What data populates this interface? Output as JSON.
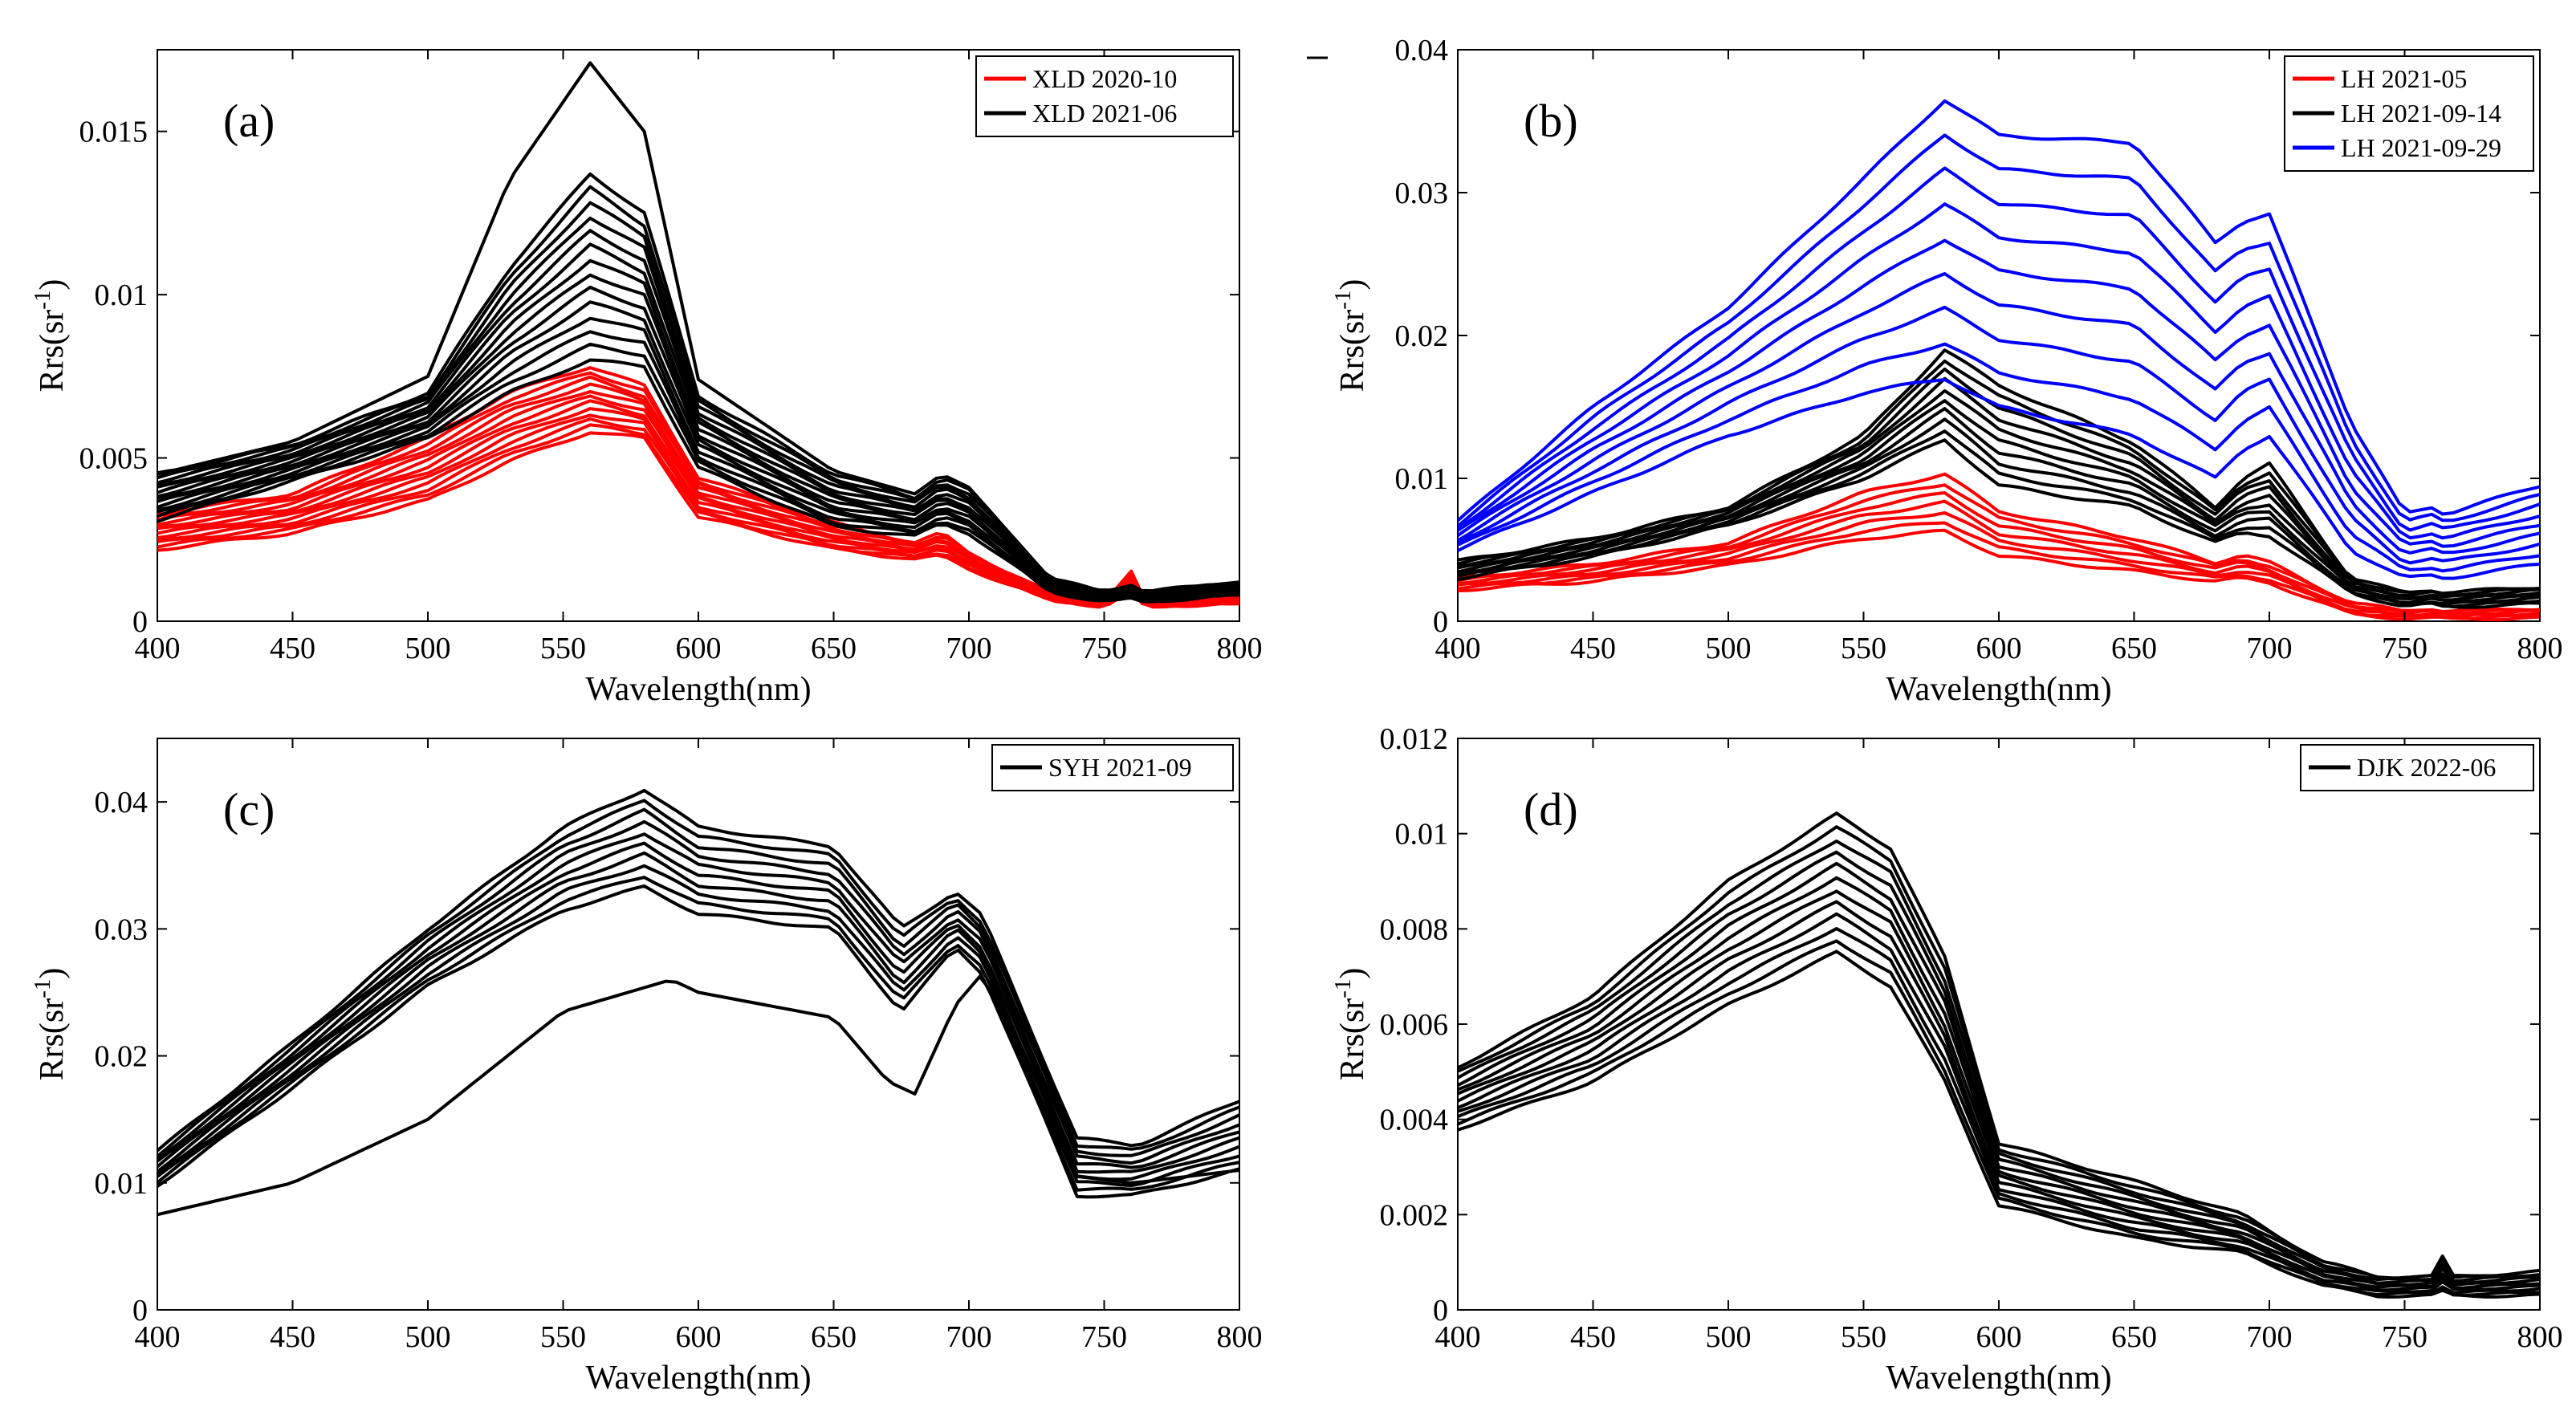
{
  "figure_title": "",
  "colors": {
    "red": "#ff0000",
    "black": "#000000",
    "blue": "#0000ff",
    "axis": "#000000"
  },
  "chart_data": [
    {
      "panel": "(a)",
      "type": "line",
      "title": "",
      "xlabel": "Wavelength(nm)",
      "ylabel": {
        "main": "Rrs(sr",
        "sup": "-1",
        "close": ")"
      },
      "xlim": [
        400,
        800
      ],
      "ylim": [
        0,
        0.0175
      ],
      "xticks": [
        400,
        450,
        500,
        550,
        600,
        650,
        700,
        750,
        800
      ],
      "xtick_labels": [
        "400",
        "450",
        "500",
        "550",
        "600",
        "650",
        "700",
        "750",
        "800"
      ],
      "yticks": [
        0,
        0.005,
        0.01,
        0.015
      ],
      "ytick_labels": [
        "0",
        "0.005",
        "0.01",
        "0.015"
      ],
      "legend_position": "top-right",
      "legend": [
        {
          "label": "XLD 2020-10",
          "color": "#ff0000"
        },
        {
          "label": "XLD 2021-06",
          "color": "#000000"
        }
      ],
      "series": [
        {
          "name": "XLD 2020-10",
          "color": "#ff0000",
          "x": [
            400,
            450,
            500,
            530,
            560,
            580,
            600,
            650,
            680,
            690,
            700,
            730,
            750,
            760,
            765,
            800
          ],
          "min": [
            0.0022,
            0.0027,
            0.0037,
            0.0049,
            0.0058,
            0.0056,
            0.0032,
            0.0022,
            0.0019,
            0.002,
            0.0016,
            0.00065,
            0.00045,
            0.0009,
            0.00045,
            0.00055
          ],
          "max": [
            0.0033,
            0.0039,
            0.0056,
            0.007,
            0.0078,
            0.0072,
            0.0044,
            0.003,
            0.0024,
            0.0027,
            0.0021,
            0.00085,
            0.0006,
            0.0015,
            0.0006,
            0.0007
          ],
          "count": 12
        },
        {
          "name": "XLD 2021-06",
          "color": "#000000",
          "x": [
            400,
            450,
            500,
            530,
            560,
            580,
            600,
            650,
            680,
            690,
            700,
            730,
            750,
            760,
            765,
            800
          ],
          "min": [
            0.0031,
            0.0043,
            0.0056,
            0.007,
            0.008,
            0.0078,
            0.0047,
            0.0029,
            0.0026,
            0.003,
            0.0027,
            0.0009,
            0.0006,
            0.0007,
            0.0006,
            0.0008
          ],
          "max": [
            0.0045,
            0.0054,
            0.007,
            0.0108,
            0.0137,
            0.0125,
            0.0069,
            0.0045,
            0.0038,
            0.0044,
            0.004,
            0.0013,
            0.0009,
            0.0011,
            0.0009,
            0.0012
          ],
          "count": 14,
          "peak_line": {
            "x": [
              400,
              450,
              500,
              530,
              560,
              580,
              600,
              650,
              680,
              690,
              700,
              730,
              750,
              760,
              765,
              800
            ],
            "y": [
              0.0045,
              0.0055,
              0.0075,
              0.0135,
              0.0171,
              0.015,
              0.0074,
              0.0046,
              0.0039,
              0.0045,
              0.0041,
              0.0013,
              0.0009,
              0.0011,
              0.0009,
              0.0012
            ]
          }
        }
      ]
    },
    {
      "panel": "(b)",
      "type": "line",
      "title": "",
      "xlabel": "Wavelength(nm)",
      "ylabel": {
        "main": "Rrs(sr",
        "sup": "-1",
        "close": ")"
      },
      "xlim": [
        400,
        800
      ],
      "ylim": [
        0,
        0.04
      ],
      "xticks": [
        400,
        450,
        500,
        550,
        600,
        650,
        700,
        750,
        800
      ],
      "xtick_labels": [
        "400",
        "450",
        "500",
        "550",
        "600",
        "650",
        "700",
        "750",
        "800"
      ],
      "yticks": [
        0,
        0.01,
        0.02,
        0.03,
        0.04
      ],
      "ytick_labels": [
        "0",
        "0.01",
        "0.02",
        "0.03",
        "0.04"
      ],
      "legend_position": "top-right",
      "legend": [
        {
          "label": "LH 2021-05",
          "color": "#ff0000"
        },
        {
          "label": "LH 2021-09-14",
          "color": "#000000"
        },
        {
          "label": "LH 2021-09-29",
          "color": "#0000ff"
        }
      ],
      "series": [
        {
          "name": "LH 2021-05",
          "color": "#ff0000",
          "x": [
            400,
            450,
            500,
            550,
            580,
            600,
            650,
            680,
            690,
            700,
            730,
            750,
            760,
            765,
            800
          ],
          "min": [
            0.0022,
            0.0028,
            0.0039,
            0.0058,
            0.0063,
            0.0046,
            0.0035,
            0.0028,
            0.003,
            0.0027,
            0.0005,
            0.0002,
            0.0002,
            0.0002,
            0.0002
          ],
          "max": [
            0.003,
            0.004,
            0.0055,
            0.009,
            0.0103,
            0.0077,
            0.0058,
            0.0041,
            0.0047,
            0.0041,
            0.0013,
            0.0007,
            0.0009,
            0.0007,
            0.0009
          ],
          "count": 7
        },
        {
          "name": "LH 2021-09-14",
          "color": "#000000",
          "x": [
            400,
            450,
            500,
            550,
            580,
            600,
            650,
            680,
            690,
            700,
            730,
            750,
            760,
            765,
            800
          ],
          "min": [
            0.003,
            0.0045,
            0.0067,
            0.01,
            0.0127,
            0.0095,
            0.008,
            0.0055,
            0.0062,
            0.006,
            0.002,
            0.001,
            0.0012,
            0.001,
            0.0012
          ],
          "max": [
            0.0042,
            0.0058,
            0.008,
            0.013,
            0.019,
            0.0165,
            0.0125,
            0.008,
            0.01,
            0.011,
            0.003,
            0.002,
            0.0022,
            0.002,
            0.0024
          ],
          "count": 10
        },
        {
          "name": "LH 2021-09-29",
          "color": "#0000ff",
          "x": [
            400,
            450,
            500,
            550,
            580,
            600,
            650,
            680,
            690,
            700,
            730,
            750,
            760,
            765,
            800
          ],
          "min": [
            0.005,
            0.009,
            0.013,
            0.016,
            0.017,
            0.015,
            0.013,
            0.01,
            0.012,
            0.013,
            0.005,
            0.003,
            0.0032,
            0.003,
            0.004
          ],
          "max": [
            0.007,
            0.015,
            0.022,
            0.031,
            0.0365,
            0.034,
            0.0335,
            0.0265,
            0.028,
            0.0285,
            0.014,
            0.0075,
            0.008,
            0.0075,
            0.0095
          ],
          "count": 9
        }
      ]
    },
    {
      "panel": "(c)",
      "type": "line",
      "title": "",
      "xlabel": "Wavelength(nm)",
      "ylabel": {
        "main": "Rrs(sr",
        "sup": "-1",
        "close": ")"
      },
      "xlim": [
        400,
        800
      ],
      "ylim": [
        0,
        0.045
      ],
      "xticks": [
        400,
        450,
        500,
        550,
        600,
        650,
        700,
        750,
        800
      ],
      "xtick_labels": [
        "400",
        "450",
        "500",
        "550",
        "600",
        "650",
        "700",
        "750",
        "800"
      ],
      "yticks": [
        0,
        0.01,
        0.02,
        0.03,
        0.04
      ],
      "ytick_labels": [
        "0",
        "0.01",
        "0.02",
        "0.03",
        "0.04"
      ],
      "legend_position": "top-right",
      "legend": [
        {
          "label": "SYH 2021-09",
          "color": "#000000"
        }
      ],
      "series": [
        {
          "name": "SYH 2021-09",
          "color": "#000000",
          "x": [
            400,
            450,
            500,
            550,
            580,
            600,
            650,
            675,
            695,
            705,
            740,
            760,
            765,
            800
          ],
          "min": [
            0.0098,
            0.0175,
            0.0255,
            0.0315,
            0.0333,
            0.0312,
            0.03,
            0.0235,
            0.0285,
            0.0265,
            0.009,
            0.009,
            0.0092,
            0.011
          ],
          "max": [
            0.0125,
            0.021,
            0.03,
            0.038,
            0.041,
            0.038,
            0.0365,
            0.03,
            0.033,
            0.031,
            0.0135,
            0.013,
            0.0132,
            0.0165
          ],
          "count": 10,
          "low_line": {
            "x": [
              400,
              450,
              500,
              550,
              590,
              600,
              650,
              670,
              680,
              695,
              705,
              740,
              760,
              765,
              800
            ],
            "y": [
              0.0075,
              0.01,
              0.015,
              0.0235,
              0.026,
              0.025,
              0.023,
              0.018,
              0.017,
              0.024,
              0.0265,
              0.0105,
              0.01,
              0.0101,
              0.011
            ]
          }
        }
      ]
    },
    {
      "panel": "(d)",
      "type": "line",
      "title": "",
      "xlabel": "Wavelength(nm)",
      "ylabel": {
        "main": "Rrs(sr",
        "sup": "-1",
        "close": ")"
      },
      "xlim": [
        400,
        800
      ],
      "ylim": [
        0,
        0.012
      ],
      "xticks": [
        400,
        450,
        500,
        550,
        600,
        650,
        700,
        750,
        800
      ],
      "xtick_labels": [
        "400",
        "450",
        "500",
        "550",
        "600",
        "650",
        "700",
        "750",
        "800"
      ],
      "yticks": [
        0,
        0.002,
        0.004,
        0.006,
        0.008,
        0.01,
        0.012
      ],
      "ytick_labels": [
        "0",
        "0.002",
        "0.004",
        "0.006",
        "0.008",
        "0.01",
        "0.012"
      ],
      "legend_position": "top-right",
      "legend": [
        {
          "label": "DJK 2022-06",
          "color": "#000000"
        }
      ],
      "series": [
        {
          "name": "DJK 2022-06",
          "color": "#000000",
          "x": [
            400,
            450,
            500,
            540,
            560,
            580,
            600,
            650,
            690,
            720,
            740,
            760,
            763,
            768,
            800
          ],
          "min": [
            0.0038,
            0.0048,
            0.0064,
            0.0075,
            0.0068,
            0.0048,
            0.0022,
            0.0015,
            0.0012,
            0.0005,
            0.0003,
            0.0003,
            0.0004,
            0.0003,
            0.0003
          ],
          "max": [
            0.0051,
            0.0066,
            0.009,
            0.0104,
            0.0097,
            0.0074,
            0.0035,
            0.0027,
            0.002,
            0.001,
            0.0007,
            0.0007,
            0.0012,
            0.0007,
            0.0008
          ],
          "count": 12
        }
      ]
    }
  ]
}
